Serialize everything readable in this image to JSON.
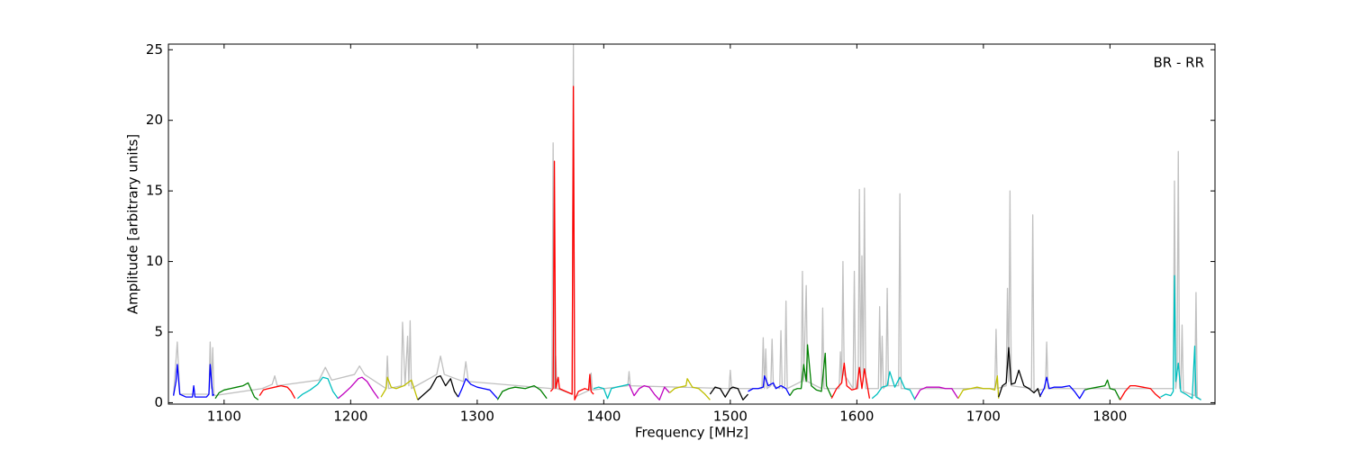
{
  "chart_data": {
    "type": "line",
    "xlabel": "Frequency [MHz]",
    "ylabel": "Amplitude [arbitrary units]",
    "annotation": "BR - RR",
    "xlim": [
      1056,
      1883
    ],
    "ylim": [
      -0.1,
      25.4
    ],
    "xticks": [
      1100,
      1200,
      1300,
      1400,
      1500,
      1600,
      1700,
      1800
    ],
    "yticks": [
      0,
      5,
      10,
      15,
      20,
      25
    ],
    "series": [
      {
        "color": "#c0c0c0",
        "x": [
          1060,
          1063,
          1065,
          1088,
          1089,
          1090,
          1091,
          1092,
          1130,
          1138,
          1140,
          1142,
          1175,
          1180,
          1185,
          1203,
          1207,
          1211,
          1228,
          1229,
          1230,
          1240,
          1241,
          1243,
          1245,
          1246,
          1247,
          1248,
          1268,
          1271,
          1274,
          1289,
          1291,
          1293,
          1359,
          1360,
          1361,
          1362,
          1363,
          1375,
          1376,
          1377,
          1389,
          1390,
          1391,
          1419,
          1420,
          1421,
          1499,
          1500,
          1501,
          1525,
          1526,
          1527,
          1528,
          1529,
          1532,
          1533,
          1534,
          1539,
          1540,
          1541,
          1543,
          1544,
          1545,
          1556,
          1557,
          1558,
          1560,
          1561,
          1572,
          1573,
          1574,
          1586,
          1587,
          1588,
          1589,
          1590,
          1597,
          1598,
          1599,
          1601,
          1602,
          1603,
          1604,
          1605,
          1606,
          1607,
          1617,
          1618,
          1619,
          1620,
          1621,
          1623,
          1624,
          1625,
          1633,
          1634,
          1635,
          1709,
          1710,
          1711,
          1718,
          1719,
          1720,
          1721,
          1722,
          1738,
          1739,
          1740,
          1749,
          1750,
          1751,
          1850,
          1851,
          1852,
          1853,
          1854,
          1855,
          1856,
          1857,
          1858,
          1867,
          1868,
          1869,
          1872
        ],
        "values": [
          0.5,
          4.3,
          0.6,
          0.6,
          4.3,
          1.0,
          3.9,
          0.5,
          1.0,
          1.3,
          1.9,
          1.2,
          1.6,
          2.5,
          1.6,
          2.0,
          2.6,
          2.0,
          1.0,
          3.3,
          1.0,
          1.2,
          5.7,
          1.2,
          4.7,
          1.2,
          5.8,
          1.0,
          2.0,
          3.3,
          2.0,
          1.5,
          2.9,
          1.5,
          1.0,
          18.4,
          1.0,
          3.3,
          1.0,
          0.6,
          25.4,
          0.4,
          0.9,
          2.1,
          0.9,
          1.2,
          2.2,
          1.2,
          1.0,
          2.3,
          1.0,
          1.0,
          4.6,
          1.0,
          3.8,
          1.0,
          1.2,
          4.5,
          1.2,
          1.0,
          5.1,
          1.0,
          1.2,
          7.2,
          1.0,
          1.5,
          9.3,
          1.5,
          8.3,
          1.5,
          1.0,
          6.7,
          1.0,
          1.0,
          3.6,
          1.4,
          10.0,
          2.0,
          1.0,
          9.3,
          1.0,
          1.0,
          15.1,
          1.5,
          10.4,
          1.5,
          15.2,
          1.0,
          1.0,
          6.8,
          1.0,
          4.7,
          1.0,
          1.2,
          8.1,
          1.2,
          1.2,
          14.8,
          1.0,
          1.0,
          5.2,
          1.0,
          1.2,
          8.1,
          1.5,
          15.0,
          1.2,
          1.0,
          13.3,
          0.8,
          1.0,
          4.3,
          1.0,
          1.0,
          15.7,
          1.0,
          2.0,
          17.8,
          1.0,
          1.0,
          5.5,
          0.8,
          0.5,
          7.8,
          0.4,
          0.2
        ]
      },
      {
        "color": "#0000ff",
        "x": [
          1060,
          1062,
          1063,
          1065,
          1070,
          1075,
          1076,
          1077,
          1086,
          1088,
          1089,
          1091,
          1092
        ],
        "values": [
          0.5,
          1.5,
          2.7,
          0.6,
          0.4,
          0.4,
          1.2,
          0.4,
          0.4,
          0.6,
          2.7,
          0.5,
          0.6
        ]
      },
      {
        "color": "#008000",
        "x": [
          1093,
          1096,
          1100,
          1105,
          1110,
          1115,
          1119,
          1121,
          1124,
          1127
        ],
        "values": [
          0.3,
          0.7,
          0.9,
          1.0,
          1.1,
          1.2,
          1.4,
          1.0,
          0.4,
          0.2
        ]
      },
      {
        "color": "#ff0000",
        "x": [
          1128,
          1131,
          1135,
          1140,
          1145,
          1150,
          1153,
          1156
        ],
        "values": [
          0.5,
          0.9,
          1.0,
          1.1,
          1.2,
          1.1,
          0.8,
          0.3
        ]
      },
      {
        "color": "#00bfbf",
        "x": [
          1158,
          1162,
          1168,
          1174,
          1178,
          1182,
          1186,
          1190
        ],
        "values": [
          0.3,
          0.6,
          0.9,
          1.3,
          1.8,
          1.7,
          0.8,
          0.3
        ]
      },
      {
        "color": "#bf00bf",
        "x": [
          1190,
          1194,
          1200,
          1206,
          1209,
          1213,
          1218,
          1222
        ],
        "values": [
          0.3,
          0.6,
          1.1,
          1.7,
          1.8,
          1.5,
          0.8,
          0.3
        ]
      },
      {
        "color": "#bfbf00",
        "x": [
          1224,
          1228,
          1229,
          1232,
          1236,
          1242,
          1248,
          1253
        ],
        "values": [
          0.4,
          1.0,
          1.8,
          1.1,
          1.0,
          1.2,
          1.6,
          0.2
        ]
      },
      {
        "color": "#000000",
        "x": [
          1253,
          1258,
          1263,
          1268,
          1271,
          1275,
          1279,
          1282,
          1285
        ],
        "values": [
          0.2,
          0.6,
          1.0,
          1.8,
          1.9,
          1.2,
          1.7,
          0.8,
          0.4
        ]
      },
      {
        "color": "#0000ff",
        "x": [
          1285,
          1288,
          1291,
          1295,
          1300,
          1305,
          1310,
          1316
        ],
        "values": [
          0.4,
          1.0,
          1.7,
          1.3,
          1.1,
          1.0,
          0.9,
          0.3
        ]
      },
      {
        "color": "#008000",
        "x": [
          1316,
          1320,
          1325,
          1330,
          1338,
          1345,
          1350,
          1355
        ],
        "values": [
          0.2,
          0.8,
          1.0,
          1.1,
          1.0,
          1.2,
          0.9,
          0.3
        ]
      },
      {
        "color": "#ff0000",
        "x": [
          1358,
          1360,
          1361,
          1362,
          1364,
          1365,
          1370,
          1375,
          1376,
          1377,
          1380,
          1385,
          1388,
          1389,
          1390,
          1392
        ],
        "values": [
          0.8,
          1.0,
          17.1,
          1.0,
          1.8,
          1.0,
          0.8,
          0.6,
          22.4,
          0.2,
          0.8,
          1.0,
          0.9,
          2.0,
          0.8,
          0.6
        ]
      },
      {
        "color": "#00bfbf",
        "x": [
          1392,
          1396,
          1400,
          1403,
          1406,
          1410,
          1415,
          1420
        ],
        "values": [
          1.0,
          1.1,
          1.0,
          0.3,
          1.0,
          1.1,
          1.2,
          1.3
        ]
      },
      {
        "color": "#bf00bf",
        "x": [
          1420,
          1424,
          1428,
          1432,
          1436,
          1440,
          1444,
          1448,
          1452
        ],
        "values": [
          1.3,
          0.5,
          1.0,
          1.2,
          1.1,
          0.6,
          0.2,
          1.1,
          0.7
        ]
      },
      {
        "color": "#bfbf00",
        "x": [
          1452,
          1456,
          1460,
          1465,
          1466,
          1470,
          1475,
          1480,
          1484
        ],
        "values": [
          0.7,
          1.0,
          1.1,
          1.2,
          1.7,
          1.1,
          1.0,
          0.6,
          0.2
        ]
      },
      {
        "color": "#000000",
        "x": [
          1484,
          1488,
          1492,
          1496,
          1500,
          1502,
          1506,
          1510,
          1514
        ],
        "values": [
          0.6,
          1.1,
          1.0,
          0.4,
          1.0,
          1.1,
          1.0,
          0.2,
          0.6
        ]
      },
      {
        "color": "#0000ff",
        "x": [
          1514,
          1518,
          1522,
          1526,
          1527,
          1530,
          1534,
          1536,
          1540,
          1544,
          1547
        ],
        "values": [
          0.8,
          1.0,
          1.0,
          1.1,
          1.9,
          1.2,
          1.4,
          1.0,
          1.2,
          1.0,
          0.5
        ]
      },
      {
        "color": "#008000",
        "x": [
          1547,
          1550,
          1553,
          1556,
          1558,
          1560,
          1561,
          1564,
          1568,
          1572,
          1575,
          1576,
          1580
        ],
        "values": [
          0.5,
          0.9,
          1.0,
          1.0,
          2.7,
          1.5,
          4.1,
          1.2,
          0.9,
          0.8,
          3.5,
          1.2,
          0.4
        ]
      },
      {
        "color": "#ff0000",
        "x": [
          1580,
          1584,
          1588,
          1590,
          1592,
          1596,
          1600,
          1602,
          1604,
          1606,
          1610
        ],
        "values": [
          0.3,
          1.0,
          1.4,
          2.8,
          1.2,
          0.9,
          1.0,
          2.5,
          1.0,
          2.4,
          0.3
        ]
      },
      {
        "color": "#00bfbf",
        "x": [
          1612,
          1616,
          1620,
          1624,
          1626,
          1630,
          1634,
          1638,
          1642,
          1646
        ],
        "values": [
          0.3,
          0.6,
          1.1,
          1.2,
          2.2,
          1.1,
          1.8,
          1.0,
          0.9,
          0.2
        ]
      },
      {
        "color": "#bf00bf",
        "x": [
          1646,
          1650,
          1655,
          1660,
          1665,
          1670,
          1675,
          1680
        ],
        "values": [
          0.3,
          0.9,
          1.1,
          1.1,
          1.1,
          1.0,
          1.0,
          0.3
        ]
      },
      {
        "color": "#bfbf00",
        "x": [
          1680,
          1684,
          1690,
          1695,
          1700,
          1705,
          1709,
          1711,
          1712
        ],
        "values": [
          0.3,
          0.9,
          1.0,
          1.1,
          1.0,
          1.0,
          0.9,
          1.9,
          0.3
        ]
      },
      {
        "color": "#000000",
        "x": [
          1712,
          1715,
          1718,
          1720,
          1722,
          1725,
          1728,
          1732,
          1736,
          1740,
          1743,
          1745
        ],
        "values": [
          0.4,
          1.2,
          1.4,
          3.9,
          1.3,
          1.4,
          2.3,
          1.2,
          1.0,
          0.7,
          1.0,
          0.4
        ]
      },
      {
        "color": "#0000ff",
        "x": [
          1745,
          1748,
          1750,
          1752,
          1756,
          1762,
          1768,
          1772,
          1776,
          1780
        ],
        "values": [
          0.5,
          1.0,
          1.8,
          1.0,
          1.1,
          1.1,
          1.2,
          0.8,
          0.3,
          0.9
        ]
      },
      {
        "color": "#008000",
        "x": [
          1780,
          1784,
          1790,
          1796,
          1798,
          1800,
          1804,
          1808
        ],
        "values": [
          0.9,
          1.0,
          1.1,
          1.2,
          1.6,
          1.0,
          0.9,
          0.2
        ]
      },
      {
        "color": "#ff0000",
        "x": [
          1808,
          1812,
          1816,
          1820,
          1826,
          1832,
          1836,
          1840
        ],
        "values": [
          0.2,
          0.8,
          1.2,
          1.2,
          1.1,
          1.0,
          0.6,
          0.3
        ]
      },
      {
        "color": "#00bfbf",
        "x": [
          1840,
          1844,
          1848,
          1850,
          1851,
          1852,
          1854,
          1856,
          1860,
          1865,
          1867,
          1868,
          1870,
          1872
        ],
        "values": [
          0.4,
          0.6,
          0.5,
          0.8,
          9.0,
          1.5,
          2.8,
          0.8,
          0.6,
          0.3,
          4.0,
          0.4,
          0.3,
          0.2
        ]
      }
    ]
  }
}
